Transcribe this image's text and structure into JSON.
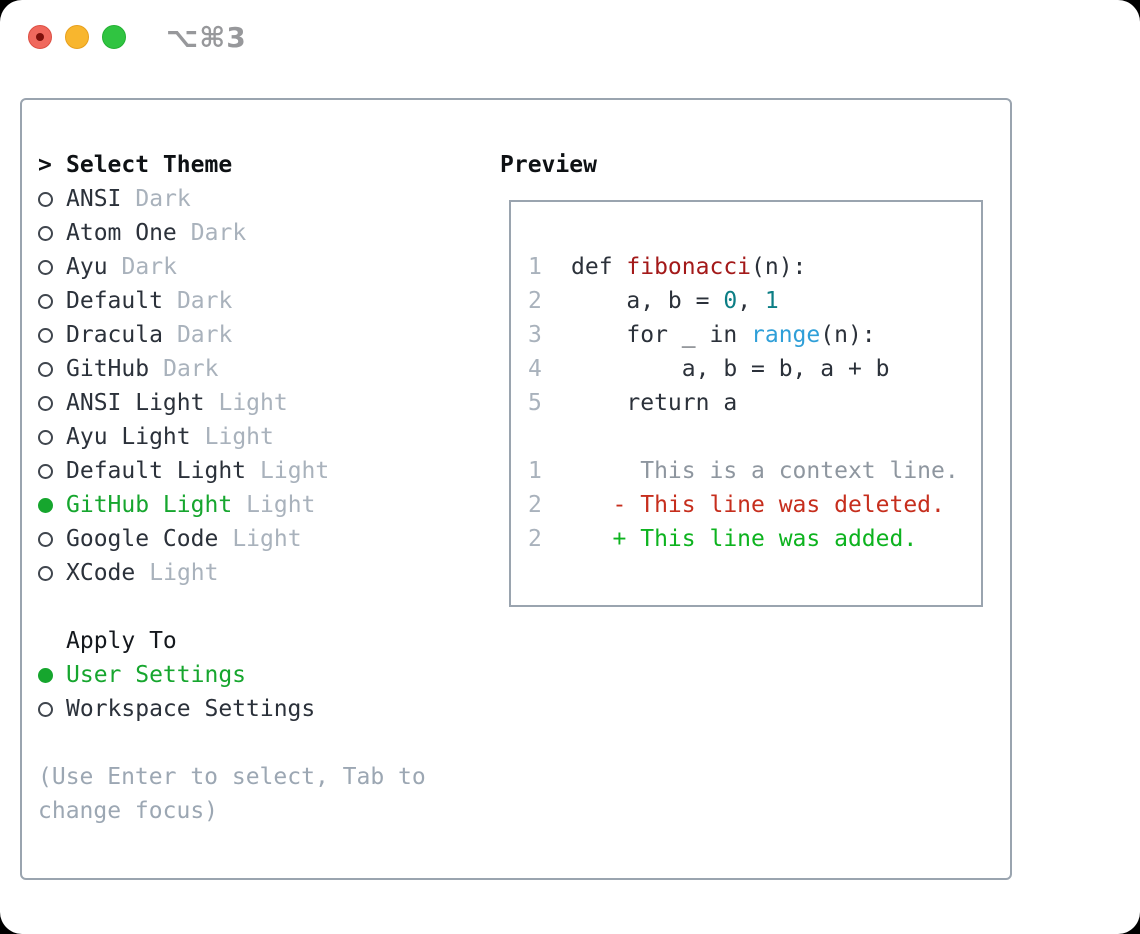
{
  "window": {
    "title_shortcut": "⌥⌘3"
  },
  "traffic_lights": {
    "red": "#f0685d",
    "red_inner_dot": "#7e100b",
    "yellow": "#f8b62e",
    "green": "#30c441"
  },
  "theme_panel": {
    "header_prefix": ">",
    "header": "Select Theme",
    "themes": [
      {
        "name": "ANSI",
        "tag": "Dark",
        "selected": false
      },
      {
        "name": "Atom One",
        "tag": "Dark",
        "selected": false
      },
      {
        "name": "Ayu",
        "tag": "Dark",
        "selected": false
      },
      {
        "name": "Default",
        "tag": "Dark",
        "selected": false
      },
      {
        "name": "Dracula",
        "tag": "Dark",
        "selected": false
      },
      {
        "name": "GitHub",
        "tag": "Dark",
        "selected": false
      },
      {
        "name": "ANSI Light",
        "tag": "Light",
        "selected": false
      },
      {
        "name": "Ayu Light",
        "tag": "Light",
        "selected": false
      },
      {
        "name": "Default Light",
        "tag": "Light",
        "selected": false
      },
      {
        "name": "GitHub Light",
        "tag": "Light",
        "selected": true
      },
      {
        "name": "Google Code",
        "tag": "Light",
        "selected": false
      },
      {
        "name": "XCode",
        "tag": "Light",
        "selected": false
      }
    ],
    "apply_to": {
      "header": "Apply To",
      "options": [
        {
          "name": "User Settings",
          "selected": true
        },
        {
          "name": "Workspace Settings",
          "selected": false
        }
      ]
    },
    "hint_lines": [
      "(Use Enter to select, Tab to",
      "change focus)"
    ]
  },
  "preview": {
    "header": "Preview",
    "lines": [
      {
        "num": "1",
        "segments": [
          {
            "text": "def ",
            "color": "fg"
          },
          {
            "text": "fibonacci",
            "color": "function_red"
          },
          {
            "text": "(n):",
            "color": "fg"
          }
        ]
      },
      {
        "num": "2",
        "segments": [
          {
            "text": "    a, b = ",
            "color": "fg"
          },
          {
            "text": "0",
            "color": "number_teal"
          },
          {
            "text": ", ",
            "color": "fg"
          },
          {
            "text": "1",
            "color": "number_teal"
          }
        ]
      },
      {
        "num": "3",
        "segments": [
          {
            "text": "    for _ in ",
            "color": "fg"
          },
          {
            "text": "range",
            "color": "builtin_blue"
          },
          {
            "text": "(n):",
            "color": "fg"
          }
        ]
      },
      {
        "num": "4",
        "segments": [
          {
            "text": "        a, b = b, a + b",
            "color": "fg"
          }
        ]
      },
      {
        "num": "5",
        "segments": [
          {
            "text": "    return a",
            "color": "fg"
          }
        ]
      },
      {
        "num": "",
        "segments": []
      },
      {
        "num": "1",
        "segments": [
          {
            "text": "     This is a context line.",
            "color": "context"
          }
        ]
      },
      {
        "num": "2",
        "segments": [
          {
            "text": "   - This line was deleted.",
            "color": "removed"
          }
        ]
      },
      {
        "num": "2",
        "segments": [
          {
            "text": "   + This line was added.",
            "color": "added"
          }
        ]
      }
    ]
  },
  "colors": {
    "fg": "#2b313a",
    "header": "#0e1114",
    "muted_tag": "#a9b2bc",
    "hint": "#9ca7b3",
    "green": "#16a62e",
    "added": "#0db31f",
    "removed": "#c62e1d",
    "function_red": "#a31919",
    "number_teal": "#0c7e85",
    "builtin_blue": "#2f9fd8",
    "context": "#8e969f",
    "line_number": "#a9b2bc",
    "panel_border": "#9aa4af",
    "title": "#97989b"
  }
}
